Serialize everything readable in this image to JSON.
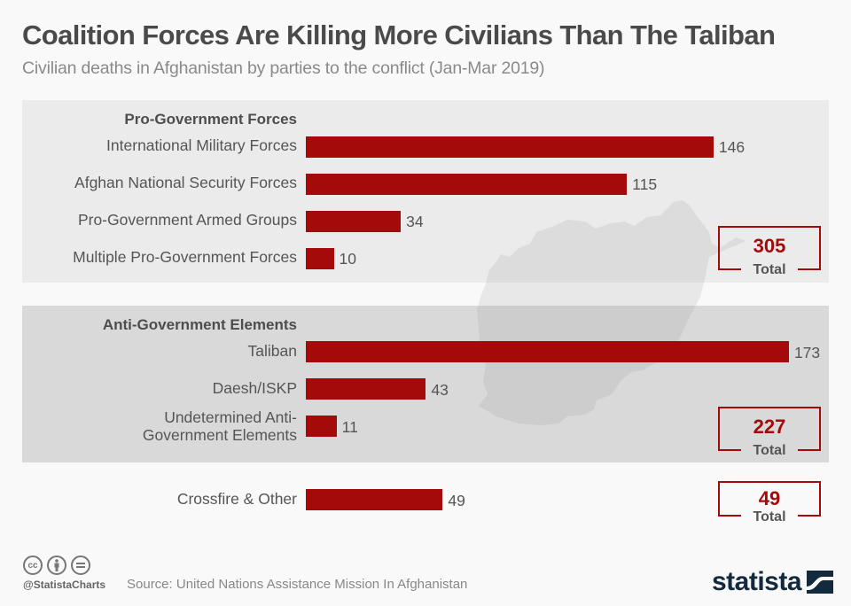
{
  "header": {
    "title": "Coalition Forces Are Killing More Civilians Than The Taliban",
    "subtitle": "Civilian deaths in Afghanistan by parties to the conflict (Jan-Mar 2019)"
  },
  "colors": {
    "bar": "#a50a0b",
    "panel1": "#ebebeb",
    "panel2": "#d9d9d9",
    "logo": "#132a3e"
  },
  "chart_data": {
    "type": "bar",
    "orientation": "horizontal",
    "title": "Coalition Forces Are Killing More Civilians Than The Taliban",
    "subtitle": "Civilian deaths in Afghanistan by parties to the conflict (Jan-Mar 2019)",
    "xlabel": "",
    "ylabel": "",
    "groups": [
      {
        "name": "Pro-Government Forces",
        "total": 305,
        "total_label": "Total",
        "categories": [
          "International Military Forces",
          "Afghan National Security Forces",
          "Pro-Government Armed Groups",
          "Multiple Pro-Government Forces"
        ],
        "values": [
          146,
          115,
          34,
          10
        ]
      },
      {
        "name": "Anti-Government Elements",
        "total": 227,
        "total_label": "Total",
        "categories": [
          "Taliban",
          "Daesh/ISKP",
          "Undetermined Anti-Government Elements"
        ],
        "values": [
          173,
          43,
          11
        ]
      },
      {
        "name": "",
        "total": 49,
        "total_label": "Total",
        "categories": [
          "Crossfire & Other"
        ],
        "values": [
          49
        ]
      }
    ]
  },
  "labels": {
    "undetermined_line1": "Undetermined Anti-",
    "undetermined_line2": "Government Elements"
  },
  "footer": {
    "license_icons": [
      "cc-icon",
      "by-icon",
      "nd-icon"
    ],
    "cc_text": "cc",
    "handle": "@StatistaCharts",
    "source": "Source: United Nations Assistance Mission In Afghanistan",
    "logo": "statista"
  }
}
